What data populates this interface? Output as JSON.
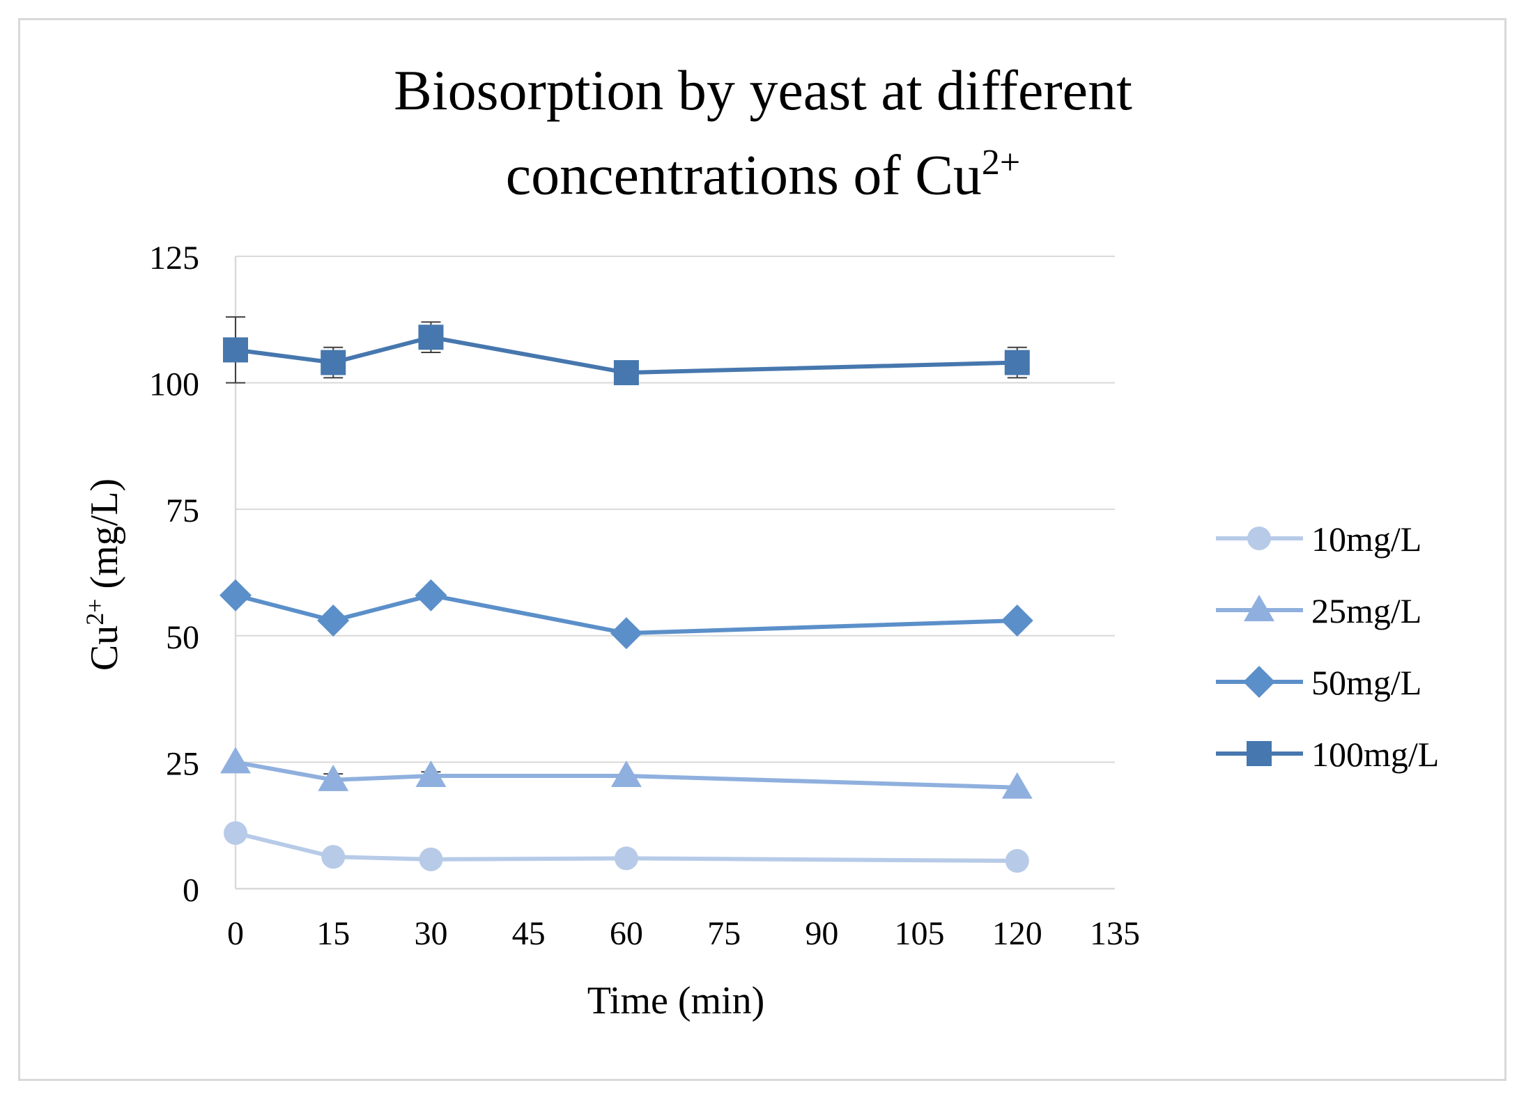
{
  "chart_data": {
    "type": "line",
    "title_line1": "Biosorption by yeast at different",
    "title_line2_prefix": "concentrations of Cu",
    "title_line2_sup": "2+",
    "xlabel": "Time (min)",
    "ylabel_prefix": "Cu",
    "ylabel_sup": "2+",
    "ylabel_suffix": " (mg/L)",
    "xlim": [
      0,
      135
    ],
    "ylim": [
      0,
      125
    ],
    "xticks": [
      0,
      15,
      30,
      45,
      60,
      75,
      90,
      105,
      120,
      135
    ],
    "yticks": [
      0,
      25,
      50,
      75,
      100,
      125
    ],
    "grid": "horizontal",
    "legend_position": "right",
    "x": [
      0,
      15,
      30,
      60,
      120
    ],
    "series": [
      {
        "name": "10mg/L",
        "marker": "circle",
        "color": "#b7cbe8",
        "values": [
          11,
          6.3,
          5.8,
          6,
          5.5
        ],
        "errors": [
          0,
          0,
          0,
          0,
          0
        ]
      },
      {
        "name": "25mg/L",
        "marker": "triangle",
        "color": "#8fb0de",
        "values": [
          25,
          21.5,
          22.3,
          22.3,
          20
        ],
        "errors": [
          0,
          1.2,
          0.8,
          0,
          0
        ]
      },
      {
        "name": "50mg/L",
        "marker": "diamond",
        "color": "#5b8fc9",
        "values": [
          58,
          53,
          58,
          50.5,
          53
        ],
        "errors": [
          0,
          0,
          0,
          0,
          0
        ]
      },
      {
        "name": "100mg/L",
        "marker": "square",
        "color": "#4677ae",
        "values": [
          106.5,
          104,
          109,
          102,
          104
        ],
        "errors": [
          6.5,
          3,
          3,
          0,
          3
        ]
      }
    ]
  }
}
